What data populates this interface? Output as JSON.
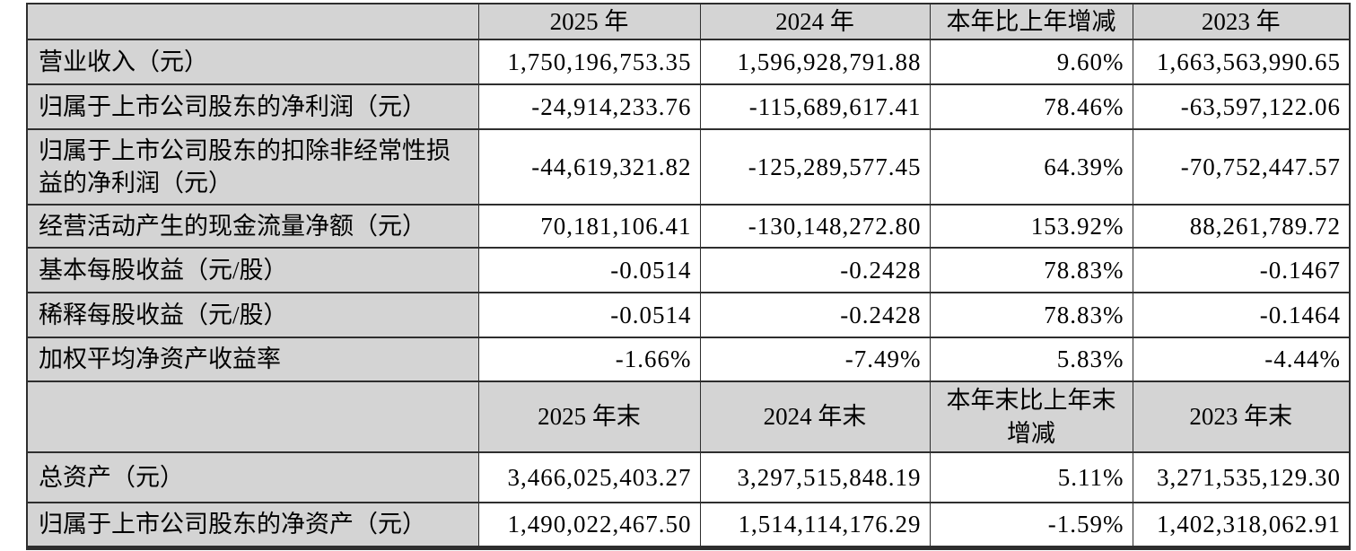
{
  "colors": {
    "header_bg": "#d4d4d4",
    "row_label_bg": "#d4d4d4",
    "data_cell_bg": "#ffffff",
    "grid_line": "#2e2e2e",
    "text": "#000000"
  },
  "table": {
    "annual": {
      "headers": {
        "corner": "",
        "col_2025": "2025 年",
        "col_2024": "2024 年",
        "col_change": "本年比上年增减",
        "col_2023": "2023 年"
      },
      "rows": [
        {
          "label": "营业收入（元）",
          "values": [
            "1,750,196,753.35",
            "1,596,928,791.88",
            "9.60%",
            "1,663,563,990.65"
          ]
        },
        {
          "label": "归属于上市公司股东的净利润（元）",
          "values": [
            "-24,914,233.76",
            "-115,689,617.41",
            "78.46%",
            "-63,597,122.06"
          ]
        },
        {
          "label": "归属于上市公司股东的扣除非经常性损益的净利润（元）",
          "values": [
            "-44,619,321.82",
            "-125,289,577.45",
            "64.39%",
            "-70,752,447.57"
          ]
        },
        {
          "label": "经营活动产生的现金流量净额（元）",
          "values": [
            "70,181,106.41",
            "-130,148,272.80",
            "153.92%",
            "88,261,789.72"
          ]
        },
        {
          "label": "基本每股收益（元/股）",
          "values": [
            "-0.0514",
            "-0.2428",
            "78.83%",
            "-0.1467"
          ]
        },
        {
          "label": "稀释每股收益（元/股）",
          "values": [
            "-0.0514",
            "-0.2428",
            "78.83%",
            "-0.1464"
          ]
        },
        {
          "label": "加权平均净资产收益率",
          "values": [
            "-1.66%",
            "-7.49%",
            "5.83%",
            "-4.44%"
          ]
        }
      ]
    },
    "end_of_year": {
      "headers": {
        "corner": "",
        "col_2025": "2025 年末",
        "col_2024": "2024 年末",
        "col_change": "本年末比上年末\n增减",
        "col_2023": "2023 年末"
      },
      "rows": [
        {
          "label": "总资产（元）",
          "values": [
            "3,466,025,403.27",
            "3,297,515,848.19",
            "5.11%",
            "3,271,535,129.30"
          ]
        },
        {
          "label": "归属于上市公司股东的净资产（元）",
          "values": [
            "1,490,022,467.50",
            "1,514,114,176.29",
            "-1.59%",
            "1,402,318,062.91"
          ]
        }
      ]
    }
  }
}
